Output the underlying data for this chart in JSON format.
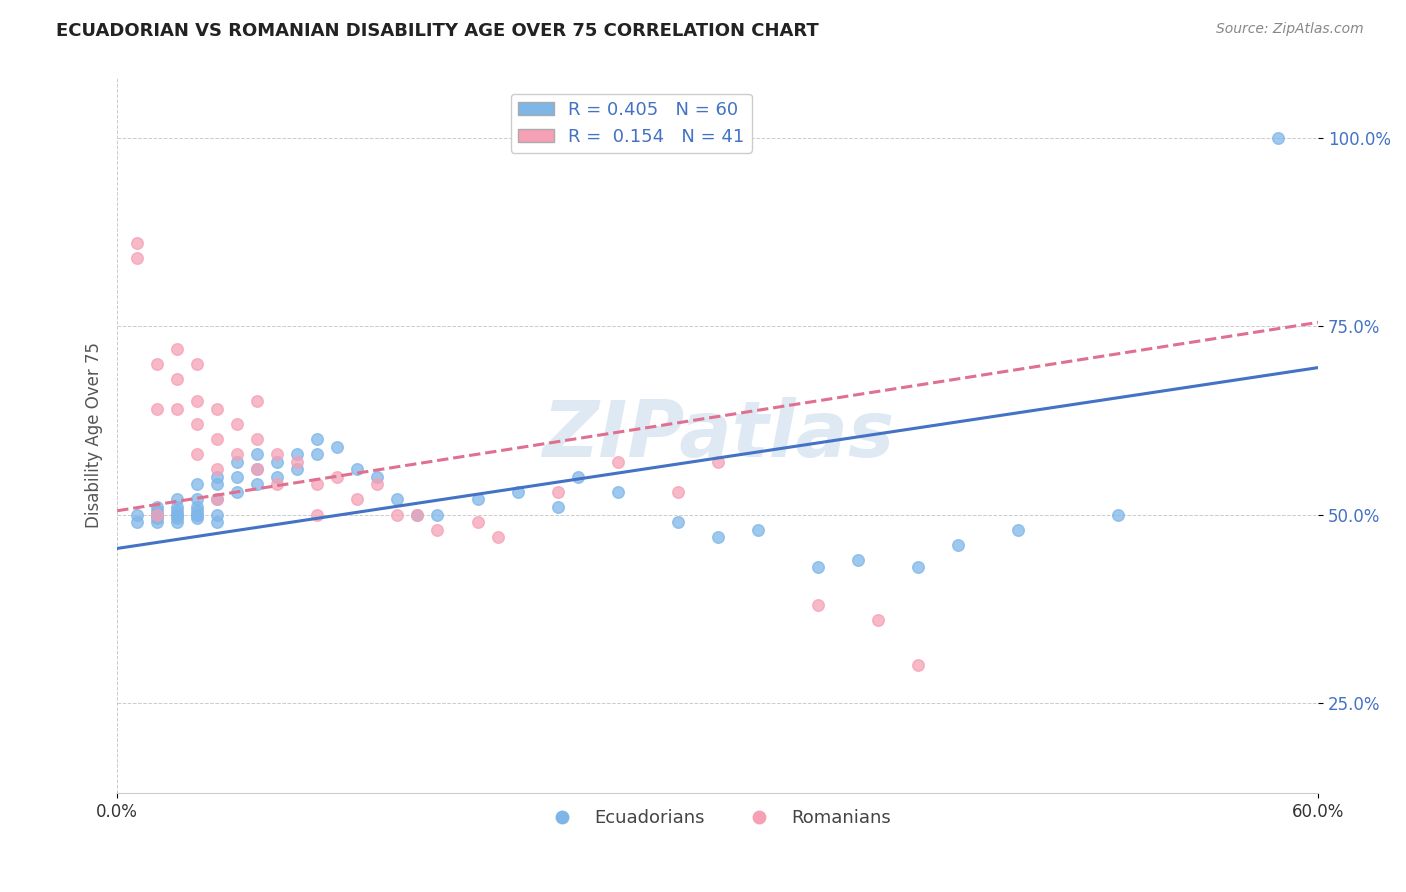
{
  "title": "ECUADORIAN VS ROMANIAN DISABILITY AGE OVER 75 CORRELATION CHART",
  "source": "Source: ZipAtlas.com",
  "ylabel": "Disability Age Over 75",
  "xlim": [
    0.0,
    0.6
  ],
  "ylim": [
    0.13,
    1.08
  ],
  "watermark": "ZIPatlas",
  "ecua_color": "#7EB6E8",
  "roma_color": "#F5A0B5",
  "ecua_line_color": "#4472C4",
  "roma_line_color": "#E07090",
  "legend_label_ecua": "Ecuadorians",
  "legend_label_roma": "Romanians",
  "ecua_scatter_x": [
    0.01,
    0.01,
    0.02,
    0.02,
    0.02,
    0.02,
    0.02,
    0.02,
    0.03,
    0.03,
    0.03,
    0.03,
    0.03,
    0.03,
    0.03,
    0.04,
    0.04,
    0.04,
    0.04,
    0.04,
    0.04,
    0.04,
    0.05,
    0.05,
    0.05,
    0.05,
    0.05,
    0.06,
    0.06,
    0.06,
    0.07,
    0.07,
    0.07,
    0.08,
    0.08,
    0.09,
    0.09,
    0.1,
    0.1,
    0.11,
    0.12,
    0.13,
    0.14,
    0.15,
    0.16,
    0.18,
    0.2,
    0.22,
    0.23,
    0.25,
    0.28,
    0.3,
    0.32,
    0.35,
    0.37,
    0.4,
    0.42,
    0.45,
    0.5,
    0.58
  ],
  "ecua_scatter_y": [
    0.5,
    0.49,
    0.51,
    0.5,
    0.495,
    0.505,
    0.49,
    0.5,
    0.52,
    0.5,
    0.495,
    0.51,
    0.5,
    0.49,
    0.505,
    0.54,
    0.52,
    0.5,
    0.505,
    0.495,
    0.51,
    0.5,
    0.55,
    0.54,
    0.52,
    0.5,
    0.49,
    0.57,
    0.55,
    0.53,
    0.58,
    0.56,
    0.54,
    0.57,
    0.55,
    0.58,
    0.56,
    0.6,
    0.58,
    0.59,
    0.56,
    0.55,
    0.52,
    0.5,
    0.5,
    0.52,
    0.53,
    0.51,
    0.55,
    0.53,
    0.49,
    0.47,
    0.48,
    0.43,
    0.44,
    0.43,
    0.46,
    0.48,
    0.5,
    1.0
  ],
  "roma_scatter_x": [
    0.01,
    0.01,
    0.02,
    0.02,
    0.02,
    0.03,
    0.03,
    0.03,
    0.04,
    0.04,
    0.04,
    0.04,
    0.05,
    0.05,
    0.05,
    0.05,
    0.06,
    0.06,
    0.07,
    0.07,
    0.07,
    0.08,
    0.08,
    0.09,
    0.1,
    0.1,
    0.11,
    0.12,
    0.13,
    0.14,
    0.15,
    0.16,
    0.18,
    0.19,
    0.22,
    0.25,
    0.28,
    0.3,
    0.35,
    0.38,
    0.4
  ],
  "roma_scatter_y": [
    0.86,
    0.84,
    0.7,
    0.64,
    0.5,
    0.72,
    0.68,
    0.64,
    0.7,
    0.65,
    0.62,
    0.58,
    0.64,
    0.6,
    0.56,
    0.52,
    0.62,
    0.58,
    0.65,
    0.6,
    0.56,
    0.58,
    0.54,
    0.57,
    0.54,
    0.5,
    0.55,
    0.52,
    0.54,
    0.5,
    0.5,
    0.48,
    0.49,
    0.47,
    0.53,
    0.57,
    0.53,
    0.57,
    0.38,
    0.36,
    0.3
  ],
  "ecua_regline_x": [
    0.0,
    0.6
  ],
  "ecua_regline_y": [
    0.455,
    0.695
  ],
  "roma_regline_x": [
    0.0,
    0.6
  ],
  "roma_regline_y": [
    0.505,
    0.755
  ]
}
